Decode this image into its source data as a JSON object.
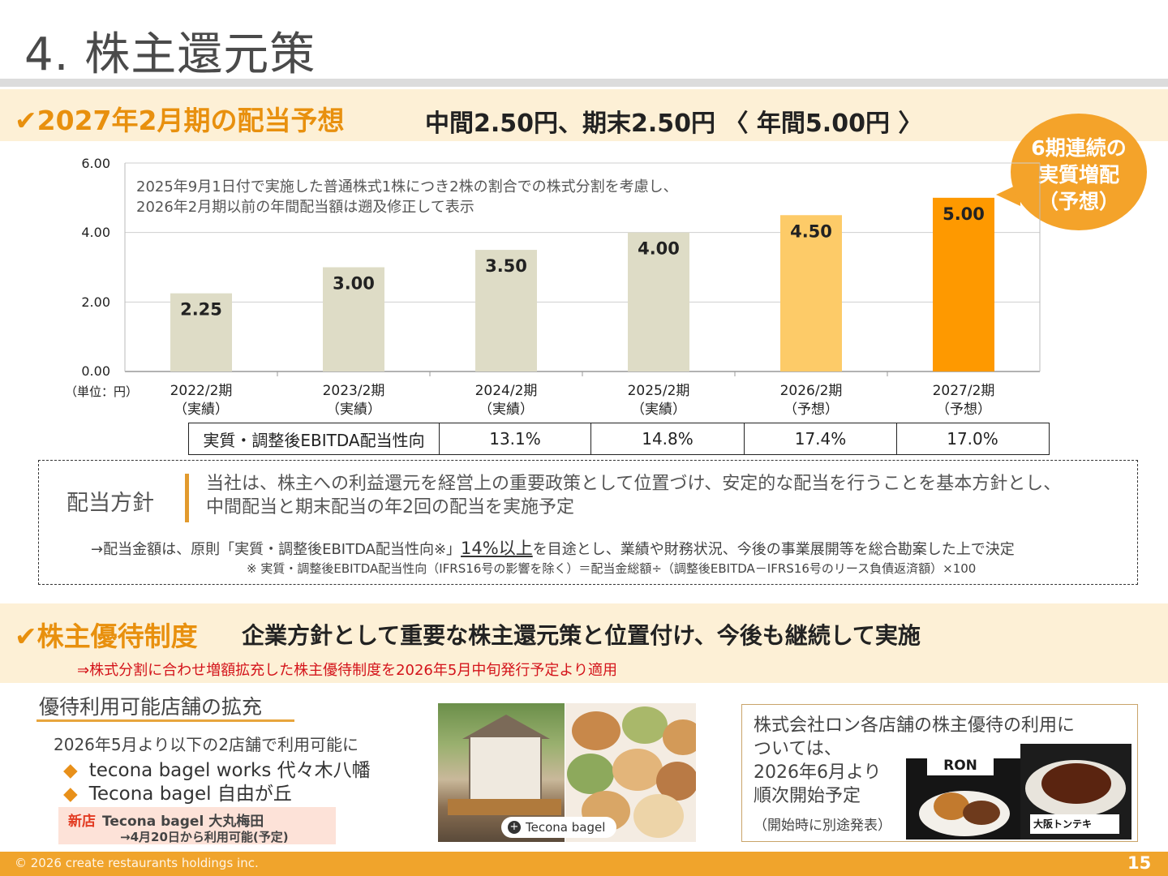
{
  "title": "4. 株主還元策",
  "dividend": {
    "heading": "✔2027年2月期の配当予想",
    "summary": "中間2.50円、期末2.50円 〈 年間5.00円 〉",
    "bubble": [
      "6期連続の",
      "実質増配",
      "（予想）"
    ]
  },
  "chart_data": {
    "type": "bar",
    "unit_label": "（単位：円）",
    "ylim": [
      0,
      6
    ],
    "yticks": [
      "0.00",
      "2.00",
      "4.00",
      "6.00"
    ],
    "note": [
      "2025年9月1日付で実施した普通株式1株につき2株の割合での株式分割を考慮し、",
      "2026年2月期以前の年間配当額は遡及修正して表示"
    ],
    "categories": [
      "2022/2期",
      "2023/2期",
      "2024/2期",
      "2025/2期",
      "2026/2期",
      "2027/2期"
    ],
    "category_sub": [
      "（実績）",
      "（実績）",
      "（実績）",
      "（実績）",
      "（予想）",
      "（予想）"
    ],
    "values": [
      2.25,
      3.0,
      3.5,
      4.0,
      4.5,
      5.0
    ],
    "value_labels": [
      "2.25",
      "3.00",
      "3.50",
      "4.00",
      "4.50",
      "5.00"
    ],
    "colors": [
      "#dedcc6",
      "#dedcc6",
      "#dedcc6",
      "#dedcc6",
      "#fdcb68",
      "#fe9900"
    ],
    "grid": true
  },
  "ebitda": {
    "label": "実質・調整後EBITDA配当性向",
    "values": [
      "13.1%",
      "14.8%",
      "17.4%",
      "17.0%"
    ]
  },
  "policy": {
    "label": "配当方針",
    "text": [
      "当社は、株主への利益還元を経営上の重要政策として位置づけ、安定的な配当を行うことを基本方針とし、",
      "中間配当と期末配当の年2回の配当を実施予定"
    ],
    "note_pre": "→配当金額は、原則「実質・調整後EBITDA配当性向※」",
    "note_emph": "14%以上",
    "note_post": "を目途とし、業績や財務状況、今後の事業展開等を総合勘案した上で決定",
    "footnote": "※ 実質・調整後EBITDA配当性向（IFRS16号の影響を除く）＝配当金総額÷（調整後EBITDA－IFRS16号のリース負債返済額）×100"
  },
  "benefit": {
    "heading": "✔株主優待制度",
    "summary": "企業方針として重要な株主還元策と位置付け、今後も継続して実施",
    "red_note": "⇒株式分割に合わせ増額拡充した株主優待制度を2026年5月中旬発行予定より適用"
  },
  "stores": {
    "heading": "優待利用可能店舗の拡充",
    "intro": "2026年5月より以下の2店舗で利用可能に",
    "items": [
      "tecona bagel works 代々木八幡",
      "Tecona bagel 自由が丘"
    ],
    "bullet": "◆",
    "new_tag": "新店",
    "new_name": "Tecona bagel 大丸梅田",
    "new_note": "→4月20日から利用可能(予定)",
    "photo_caption": "Tecona bagel"
  },
  "ron": {
    "text": [
      "株式会社ロン各店舗の株主優待の利用に",
      "ついては、",
      "2026年6月より",
      "順次開始予定"
    ],
    "small": "（開始時に別途発表）",
    "logo": "RON",
    "tonteki": "大阪トンテキ"
  },
  "footer": {
    "copyright": "© 2026 create restaurants holdings inc.",
    "page": "15"
  }
}
